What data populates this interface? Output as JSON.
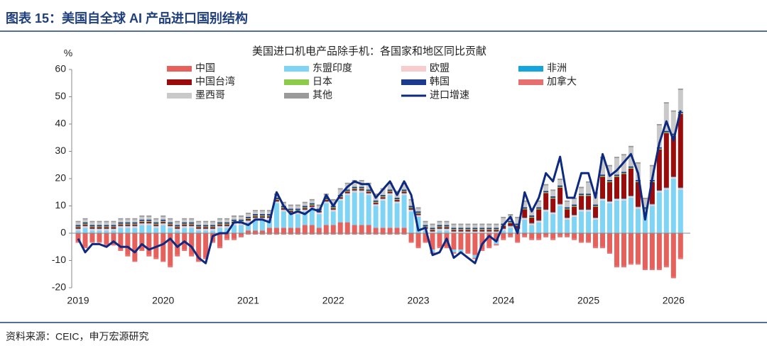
{
  "header": {
    "title": "图表 15：美国自全球 AI 产品进口国别结构"
  },
  "chart_data": {
    "type": "stacked_bar_line",
    "title": "美国进口机电产品除手机：各国家和地区同比贡献",
    "y_label": "%",
    "ylim": [
      -20,
      60
    ],
    "yticks": [
      -20,
      -10,
      0,
      10,
      20,
      30,
      40,
      50,
      60
    ],
    "categories": [
      "2019",
      null,
      null,
      null,
      null,
      null,
      null,
      null,
      null,
      null,
      null,
      null,
      "2020",
      null,
      null,
      null,
      null,
      null,
      null,
      null,
      null,
      null,
      null,
      null,
      "2021",
      null,
      null,
      null,
      null,
      null,
      null,
      null,
      null,
      null,
      null,
      null,
      "2022",
      null,
      null,
      null,
      null,
      null,
      null,
      null,
      null,
      null,
      null,
      null,
      "2023",
      null,
      null,
      null,
      null,
      null,
      null,
      null,
      null,
      null,
      null,
      null,
      "2024",
      null,
      null,
      null,
      null,
      null,
      null,
      null,
      null,
      null,
      null,
      null,
      "2025",
      null,
      null,
      null,
      null,
      null,
      null,
      null,
      null,
      null,
      null,
      null,
      "2026",
      null
    ],
    "series": [
      {
        "name": "中国",
        "color": "#e6605c",
        "values": [
          -3,
          -5,
          -3,
          -3,
          -4,
          -4,
          -6,
          -8,
          -10,
          -6,
          -8,
          -9,
          -10,
          -12,
          -8,
          -6,
          -8,
          -10,
          -9,
          -3,
          -5,
          -2,
          -2,
          -1,
          1,
          1,
          1,
          2,
          2,
          2,
          2,
          2,
          3,
          3,
          2,
          3,
          3,
          4,
          4,
          3,
          3,
          3,
          2,
          2,
          2,
          2,
          2,
          -3,
          -5,
          -3,
          -6,
          -5,
          -5,
          -6,
          -6,
          -7,
          -8,
          -6,
          -5,
          -3,
          -2,
          -1,
          -3,
          -1,
          -2,
          -2,
          -1,
          -2,
          -1,
          -1,
          -2,
          -3,
          -3,
          -5,
          -5,
          -7,
          -12,
          -12,
          -11,
          -11,
          -13,
          -13,
          -13,
          -12,
          -16,
          -9
        ]
      },
      {
        "name": "东盟印度",
        "color": "#7fd4f6",
        "values": [
          1,
          2,
          1,
          1,
          1,
          1,
          2,
          2,
          2,
          3,
          3,
          2,
          3,
          2,
          1,
          2,
          2,
          1,
          1,
          1,
          2,
          2,
          3,
          3,
          3,
          4,
          4,
          3,
          9,
          6,
          5,
          5,
          5,
          6,
          5,
          8,
          5,
          8,
          10,
          12,
          12,
          11,
          8,
          10,
          12,
          9,
          12,
          8,
          6,
          1,
          -1,
          1,
          1,
          -1,
          -1,
          0,
          -1,
          0,
          0,
          -1,
          1,
          2,
          1,
          5,
          3,
          4,
          8,
          7,
          10,
          5,
          6,
          8,
          8,
          5,
          12,
          11,
          12,
          12,
          13,
          9,
          8,
          10,
          15,
          16,
          20,
          16
        ]
      },
      {
        "name": "欧盟",
        "color": "#f8cccc",
        "values": [
          0.5,
          0.5,
          0.5,
          0.5,
          0.5,
          0.5,
          0.5,
          0.5,
          0.5,
          0.5,
          0.5,
          0.5,
          0.5,
          0.5,
          0.5,
          0.5,
          0.5,
          0.5,
          0.5,
          0.5,
          0.5,
          0.5,
          0.5,
          0.5,
          0.5,
          0.5,
          0.5,
          0.5,
          0.5,
          0.5,
          0.5,
          0.5,
          0.5,
          0.5,
          0.5,
          0.5,
          0.5,
          0.5,
          0.5,
          0.5,
          0.5,
          0.5,
          0.5,
          0.5,
          0.5,
          0.5,
          0.5,
          0.5,
          0.5,
          0.5,
          0.5,
          0.5,
          0.5,
          0.5,
          0.5,
          0.5,
          0.5,
          0.5,
          0.5,
          0.5,
          0.5,
          0.5,
          0.5,
          0.5,
          0.5,
          0.5,
          0.5,
          0.5,
          0.5,
          0.5,
          0.5,
          0.5,
          0.5,
          0.5,
          0.5,
          0.5,
          0.5,
          0.5,
          0.5,
          0.5,
          0.5,
          0.5,
          0.5,
          0.5,
          0.5,
          0.5
        ]
      },
      {
        "name": "非洲",
        "color": "#15a5de",
        "values": [
          0.2,
          0.2,
          0.2,
          0.2,
          0.2,
          0.2,
          0.2,
          0.2,
          0.2,
          0.2,
          0.2,
          0.2,
          0.2,
          0.2,
          0.2,
          0.2,
          0.2,
          0.2,
          0.2,
          0.2,
          0.2,
          0.2,
          0.2,
          0.2,
          0.2,
          0.2,
          0.2,
          0.2,
          0.2,
          0.2,
          0.2,
          0.2,
          0.2,
          0.2,
          0.2,
          0.2,
          0.2,
          0.2,
          0.2,
          0.2,
          0.2,
          0.2,
          0.2,
          0.2,
          0.2,
          0.2,
          0.2,
          0.2,
          0.2,
          0.2,
          0.2,
          0.2,
          0.2,
          0.2,
          0.2,
          0.2,
          0.2,
          0.2,
          0.2,
          0.2,
          0.2,
          0.2,
          0.2,
          0.2,
          0.2,
          0.2,
          0.2,
          0.2,
          0.2,
          0.2,
          0.2,
          0.2,
          0.2,
          0.2,
          0.2,
          0.2,
          0.2,
          0.2,
          0.2,
          0.2,
          0.2,
          0.2,
          0.2,
          0.2,
          0.2,
          0.2
        ]
      },
      {
        "name": "中国台湾",
        "color": "#9a0c0c",
        "values": [
          0.5,
          0.5,
          0.5,
          0.5,
          0.5,
          0.5,
          0.5,
          0.5,
          0.5,
          0.5,
          0.5,
          0.5,
          0.5,
          0.5,
          0.5,
          0.5,
          0.5,
          0.5,
          0.5,
          0.5,
          0.5,
          0.5,
          0.5,
          0.5,
          0.5,
          0.5,
          0.5,
          0.5,
          0.5,
          0.5,
          0.5,
          0.5,
          0.5,
          0.5,
          0.5,
          0.5,
          0.5,
          0.5,
          0.5,
          0.5,
          0.5,
          0.5,
          0.5,
          0.5,
          0.5,
          0.5,
          0.5,
          0.5,
          0.5,
          0.5,
          0.5,
          0.5,
          0.5,
          0.5,
          0.5,
          0.5,
          0.5,
          0.5,
          0.5,
          0.5,
          1,
          1,
          1,
          3,
          2,
          4,
          6,
          5,
          6,
          3,
          3,
          5,
          5,
          4,
          8,
          7,
          8,
          9,
          10,
          9,
          0,
          8,
          15,
          20,
          15,
          27
        ]
      },
      {
        "name": "日本",
        "color": "#8dcb4b",
        "values": [
          0.3,
          0.3,
          0.3,
          0.3,
          0.3,
          0.3,
          0.3,
          0.3,
          0.3,
          0.3,
          0.3,
          0.3,
          0.3,
          0.3,
          0.3,
          0.3,
          0.3,
          0.3,
          0.3,
          0.3,
          0.3,
          0.3,
          0.3,
          0.3,
          0.3,
          0.3,
          0.3,
          0.3,
          0.3,
          0.3,
          0.3,
          0.3,
          0.3,
          0.3,
          0.3,
          0.3,
          0.3,
          0.3,
          0.3,
          0.3,
          0.3,
          0.3,
          0.3,
          0.3,
          0.3,
          0.3,
          0.3,
          0.3,
          0.3,
          0.3,
          0.3,
          0.3,
          0.3,
          0.3,
          0.3,
          0.3,
          0.3,
          0.3,
          0.3,
          0.3,
          0.3,
          0.3,
          0.3,
          0.3,
          0.3,
          0.3,
          0.3,
          0.3,
          0.3,
          0.3,
          0.3,
          0.3,
          0.3,
          0.3,
          0.3,
          0.3,
          0.3,
          0.3,
          0.3,
          0.3,
          0.3,
          0.3,
          0.3,
          0.3,
          0.3,
          0.3
        ]
      },
      {
        "name": "韩国",
        "color": "#1c3a8e",
        "values": [
          0.5,
          0.5,
          0.5,
          0.5,
          0.5,
          0.5,
          0.5,
          0.5,
          0.5,
          0.5,
          0.5,
          0.5,
          0.5,
          0.5,
          0.5,
          0.5,
          0.5,
          0.5,
          0.5,
          0.5,
          0.5,
          0.5,
          0.5,
          0.5,
          0.5,
          0.5,
          0.5,
          0.5,
          0.5,
          0.5,
          0.5,
          0.5,
          0.5,
          0.5,
          0.5,
          0.5,
          0.5,
          0.5,
          0.5,
          0.5,
          0.5,
          0.5,
          0.5,
          0.5,
          0.5,
          0.5,
          0.5,
          0.5,
          0.5,
          0.5,
          0.5,
          0.5,
          0.5,
          0.5,
          0.5,
          0.5,
          0.5,
          0.5,
          0.5,
          0.5,
          0.5,
          0.5,
          0.5,
          0.5,
          0.5,
          0.5,
          0.5,
          0.5,
          0.5,
          0.5,
          0.5,
          0.5,
          0.5,
          0.5,
          0.5,
          0.5,
          0.5,
          0.5,
          0.5,
          0.5,
          0.5,
          0.5,
          0.5,
          0.5,
          0.5,
          0.5
        ]
      },
      {
        "name": "加拿大",
        "color": "#e86f6f",
        "values": [
          -0.5,
          -0.5,
          -0.5,
          -0.5,
          -0.5,
          -0.5,
          -0.5,
          -0.5,
          -0.5,
          -0.5,
          -0.5,
          -0.5,
          -0.5,
          -0.5,
          -0.5,
          -0.5,
          -0.5,
          -0.5,
          -0.5,
          -0.5,
          -0.5,
          -0.5,
          -0.5,
          -0.5,
          -0.5,
          -0.5,
          -0.5,
          -0.5,
          -0.5,
          -0.5,
          -0.5,
          -0.5,
          -0.5,
          -0.5,
          -0.5,
          -0.5,
          -0.5,
          -0.5,
          -0.5,
          -0.5,
          -0.5,
          -0.5,
          -0.5,
          -0.5,
          -0.5,
          -0.5,
          -0.5,
          -0.5,
          -0.5,
          -0.5,
          -0.5,
          -0.5,
          -0.5,
          -0.5,
          -0.5,
          -0.5,
          -0.5,
          -0.5,
          -0.5,
          -0.5,
          -0.5,
          -0.5,
          -0.5,
          -0.5,
          -0.5,
          -0.5,
          -0.5,
          -0.5,
          -0.5,
          -0.5,
          -0.5,
          -0.5,
          -0.5,
          -0.5,
          -0.5,
          -0.5,
          -0.5,
          -0.5,
          -0.5,
          -0.5,
          -0.5,
          -0.5,
          -0.5,
          -0.5,
          -0.5,
          -0.5
        ]
      },
      {
        "name": "墨西哥",
        "color": "#c9c9c9",
        "values": [
          1,
          1,
          1,
          1,
          1,
          1,
          1,
          1,
          1,
          1,
          1,
          1,
          1,
          1,
          1,
          1,
          1,
          1,
          1,
          1,
          1,
          1,
          1,
          1,
          1,
          1,
          1,
          1,
          1,
          1,
          1,
          1,
          1,
          1,
          1,
          1,
          2,
          2,
          2,
          2,
          2,
          2,
          2,
          2,
          2,
          2,
          2,
          2,
          1,
          1,
          1,
          1,
          1,
          1,
          1,
          1,
          1,
          1,
          1,
          1,
          2,
          2,
          2,
          2,
          2,
          2,
          2,
          2,
          2,
          2,
          2,
          2,
          4,
          4,
          6,
          5,
          6,
          6,
          7,
          6,
          3,
          5,
          8,
          10,
          8,
          8
        ]
      },
      {
        "name": "其他",
        "color": "#9a9a9a",
        "values": [
          0.5,
          0.5,
          0.5,
          0.5,
          0.5,
          0.5,
          0.5,
          0.5,
          0.5,
          0.5,
          0.5,
          0.5,
          0.5,
          0.5,
          0.5,
          0.5,
          0.5,
          0.5,
          0.5,
          0.5,
          0.5,
          0.5,
          0.5,
          0.5,
          0.5,
          0.5,
          0.5,
          0.5,
          0.5,
          0.5,
          0.5,
          0.5,
          0.5,
          0.5,
          0.5,
          0.5,
          0.5,
          0.5,
          0.5,
          0.5,
          0.5,
          0.5,
          0.5,
          0.5,
          0.5,
          0.5,
          0.5,
          0.5,
          0.5,
          0.5,
          0.5,
          0.5,
          0.5,
          0.5,
          0.5,
          0.5,
          0.5,
          0.5,
          0.5,
          0.5,
          0.5,
          0.5,
          0.5,
          0.5,
          0.5,
          0.5,
          0.5,
          0.5,
          0.5,
          0.5,
          0.5,
          0.5,
          0.5,
          0.5,
          0.5,
          0.5,
          0.5,
          0.5,
          0.5,
          0.5,
          0.5,
          0.5,
          0.5,
          0.5,
          0.5,
          0.5
        ]
      },
      {
        "name": "进口增速",
        "color": "#0e2a80",
        "type": "line",
        "values": [
          -2,
          -7,
          -4,
          -4,
          -5,
          -3,
          -5,
          -5,
          -7,
          -4,
          -6,
          -5,
          -4,
          -2,
          -5,
          -3,
          -5,
          -9,
          -11,
          -1,
          0,
          0,
          4,
          4,
          3,
          5,
          5,
          4,
          15,
          10,
          7,
          8,
          7,
          9,
          8,
          14,
          10,
          14,
          17,
          19,
          18,
          18,
          13,
          16,
          19,
          14,
          19,
          14,
          1,
          2,
          -8,
          -7,
          -2,
          -9,
          -7,
          -9,
          -11,
          -4,
          -1,
          -3,
          3,
          6,
          0,
          15,
          8,
          13,
          22,
          19,
          28,
          13,
          13,
          22,
          22,
          13,
          29,
          21,
          23,
          26,
          29,
          22,
          5,
          20,
          33,
          41,
          34,
          45
        ]
      }
    ]
  },
  "footer": {
    "source": "资料来源：CEIC，申万宏源研究"
  }
}
